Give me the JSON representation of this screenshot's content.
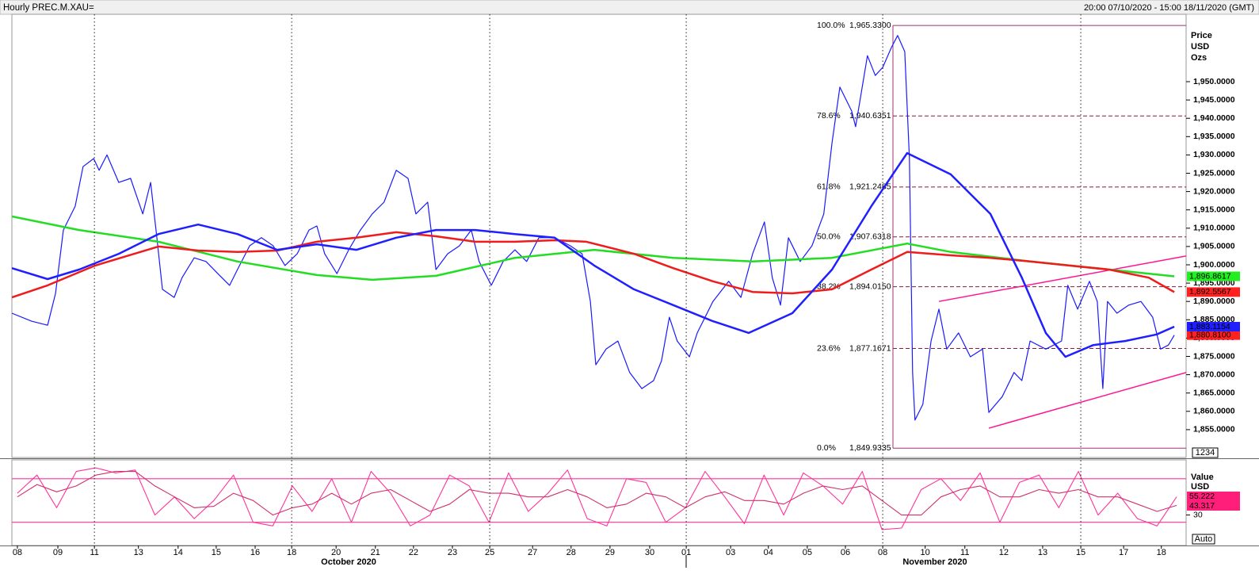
{
  "header": {
    "title": "Hourly PREC.M.XAU=",
    "range": "20:00 07/10/2020 - 15:00 18/11/2020 (GMT)"
  },
  "controls": {
    "count": "1234",
    "auto": "Auto"
  },
  "x_group_labels": [
    "October 2020",
    "November 2020"
  ],
  "chart_data": [
    {
      "type": "line",
      "y_label_lines": [
        "Price",
        "USD",
        "Ozs"
      ],
      "xlim": [
        -0.14,
        29.74
      ],
      "xticks": [
        {
          "value": 0,
          "label": "08"
        },
        {
          "value": 1.03,
          "label": "09"
        },
        {
          "value": 1.96,
          "label": "11"
        },
        {
          "value": 3.08,
          "label": "13"
        },
        {
          "value": 4.09,
          "label": "14"
        },
        {
          "value": 5.06,
          "label": "15"
        },
        {
          "value": 6.05,
          "label": "16"
        },
        {
          "value": 6.98,
          "label": "18"
        },
        {
          "value": 8.11,
          "label": "20"
        },
        {
          "value": 9.11,
          "label": "21"
        },
        {
          "value": 10.08,
          "label": "22"
        },
        {
          "value": 11.07,
          "label": "23"
        },
        {
          "value": 12.02,
          "label": "25"
        },
        {
          "value": 13.11,
          "label": "27"
        },
        {
          "value": 14.09,
          "label": "28"
        },
        {
          "value": 15.08,
          "label": "29"
        },
        {
          "value": 16.09,
          "label": "30"
        },
        {
          "value": 17.02,
          "label": "01"
        },
        {
          "value": 18.15,
          "label": "03"
        },
        {
          "value": 19.11,
          "label": "04"
        },
        {
          "value": 20.1,
          "label": "05"
        },
        {
          "value": 21.07,
          "label": "06"
        },
        {
          "value": 22.02,
          "label": "08"
        },
        {
          "value": 23.1,
          "label": "10"
        },
        {
          "value": 24.11,
          "label": "11"
        },
        {
          "value": 25.1,
          "label": "12"
        },
        {
          "value": 26.09,
          "label": "13"
        },
        {
          "value": 27.06,
          "label": "15"
        },
        {
          "value": 28.15,
          "label": "17"
        },
        {
          "value": 29.11,
          "label": "18"
        }
      ],
      "xgrid": [
        1.96,
        6.98,
        12.02,
        17.02,
        22.02,
        27.06
      ],
      "ylim": [
        1847.4,
        1968.4
      ],
      "yticks": [
        {
          "value": 1855,
          "label": "1,855.0000"
        },
        {
          "value": 1860,
          "label": "1,860.0000"
        },
        {
          "value": 1865,
          "label": "1,865.0000"
        },
        {
          "value": 1870,
          "label": "1,870.0000"
        },
        {
          "value": 1875,
          "label": "1,875.0000"
        },
        {
          "value": 1880,
          "label": "1,880.0000"
        },
        {
          "value": 1885,
          "label": "1,885.0000"
        },
        {
          "value": 1890,
          "label": "1,890.0000"
        },
        {
          "value": 1895,
          "label": "1,895.0000"
        },
        {
          "value": 1900,
          "label": "1,900.0000"
        },
        {
          "value": 1905,
          "label": "1,905.0000"
        },
        {
          "value": 1910,
          "label": "1,910.0000"
        },
        {
          "value": 1915,
          "label": "1,915.0000"
        },
        {
          "value": 1920,
          "label": "1,920.0000"
        },
        {
          "value": 1925,
          "label": "1,925.0000"
        },
        {
          "value": 1930,
          "label": "1,930.0000"
        },
        {
          "value": 1935,
          "label": "1,935.0000"
        },
        {
          "value": 1940,
          "label": "1,940.0000"
        },
        {
          "value": 1945,
          "label": "1,945.0000"
        },
        {
          "value": 1950,
          "label": "1,950.0000"
        }
      ],
      "series": [
        {
          "color": "#1a1aff",
          "width": 1.2,
          "tag_color": "#ff2020",
          "tag_label": "1,880.8100",
          "x": [
            -0.14,
            0.36,
            0.77,
            0.97,
            1.17,
            1.47,
            1.67,
            1.94,
            2.08,
            2.28,
            2.58,
            2.88,
            3.19,
            3.39,
            3.55,
            3.69,
            3.99,
            4.19,
            4.5,
            4.8,
            5.1,
            5.4,
            5.6,
            5.91,
            6.21,
            6.51,
            6.81,
            7.12,
            7.42,
            7.62,
            7.82,
            8.13,
            8.43,
            8.73,
            9.03,
            9.33,
            9.64,
            9.94,
            10.14,
            10.44,
            10.65,
            10.95,
            11.25,
            11.55,
            11.75,
            12.06,
            12.36,
            12.66,
            12.96,
            13.27,
            13.67,
            14.07,
            14.37,
            14.58,
            14.72,
            14.98,
            15.28,
            15.58,
            15.89,
            16.19,
            16.39,
            16.59,
            16.79,
            17.1,
            17.3,
            17.7,
            18.1,
            18.41,
            18.71,
            19.01,
            19.21,
            19.42,
            19.62,
            19.92,
            20.22,
            20.52,
            20.73,
            20.93,
            21.23,
            21.33,
            21.63,
            21.83,
            22.02,
            22.24,
            22.4,
            22.58,
            22.7,
            22.78,
            22.84,
            23.04,
            23.25,
            23.45,
            23.65,
            23.95,
            24.25,
            24.56,
            24.72,
            25.06,
            25.36,
            25.56,
            25.77,
            26.17,
            26.57,
            26.73,
            26.98,
            27.28,
            27.48,
            27.62,
            27.74,
            27.98,
            28.28,
            28.59,
            28.89,
            29.09,
            29.29,
            29.44
          ],
          "values": [
            1886.8,
            1884.6,
            1883.5,
            1892.2,
            1909.5,
            1916,
            1926.8,
            1929,
            1925.8,
            1930,
            1922.5,
            1923.6,
            1913.9,
            1922.5,
            1907.4,
            1893.3,
            1891.1,
            1896.5,
            1901.9,
            1900.9,
            1897.6,
            1894.4,
            1898.7,
            1905.2,
            1907.4,
            1905.2,
            1899.8,
            1903,
            1909.5,
            1910.6,
            1903,
            1897.6,
            1904.1,
            1909.5,
            1913.9,
            1917.1,
            1925.8,
            1923.6,
            1913.9,
            1917.1,
            1898.7,
            1903,
            1905.2,
            1909.5,
            1900.9,
            1894.4,
            1900.9,
            1904.1,
            1900.9,
            1907.4,
            1907.4,
            1905.2,
            1903,
            1890,
            1872.7,
            1877,
            1879.2,
            1870.6,
            1866.2,
            1868.4,
            1873.8,
            1885.7,
            1879.2,
            1874.9,
            1881.4,
            1890,
            1895.5,
            1891.1,
            1903,
            1911.7,
            1896.5,
            1889,
            1907.4,
            1900.9,
            1905.2,
            1913.9,
            1933.3,
            1948.5,
            1942,
            1937.7,
            1957.1,
            1951.7,
            1953.9,
            1959.3,
            1962.6,
            1958.2,
            1929,
            1870.6,
            1857.6,
            1861.9,
            1879.2,
            1887.9,
            1877,
            1881.4,
            1874.9,
            1877,
            1859.7,
            1864,
            1870.6,
            1868.4,
            1879.2,
            1877,
            1879.2,
            1894.4,
            1887.9,
            1895.5,
            1890,
            1866.2,
            1890,
            1886.8,
            1889,
            1890,
            1885.7,
            1877,
            1878.1,
            1880.81
          ]
        },
        {
          "color": "#1f1fff",
          "width": 2.5,
          "tag_color": "#1f1fff",
          "tag_label": "1,883.1154",
          "x": [
            -0.14,
            0.77,
            1.57,
            2.58,
            3.59,
            4.6,
            5.6,
            6.61,
            7.62,
            8.63,
            9.64,
            10.65,
            11.65,
            12.66,
            13.67,
            14.68,
            15.69,
            16.69,
            17.7,
            18.61,
            19.72,
            20.73,
            21.73,
            22.64,
            23.75,
            24.76,
            25.56,
            26.17,
            26.67,
            27.38,
            28.19,
            28.99,
            29.44
          ],
          "values": [
            1899.1,
            1896.1,
            1898.7,
            1903,
            1908.4,
            1911,
            1908.4,
            1904.1,
            1905.6,
            1904.1,
            1907.4,
            1909.5,
            1909.5,
            1908.4,
            1907.4,
            1899.8,
            1893.3,
            1889,
            1884.6,
            1881.4,
            1886.8,
            1898.7,
            1916,
            1930.5,
            1924.7,
            1913.9,
            1896.5,
            1881.4,
            1874.9,
            1878.1,
            1879.2,
            1881,
            1883.1154
          ]
        },
        {
          "color": "#ee1c1c",
          "width": 2.5,
          "tag_color": "#ff2020",
          "tag_label": "1,892.5567",
          "x": [
            -0.14,
            0.77,
            1.98,
            3.59,
            4.6,
            5.6,
            6.61,
            7.62,
            8.63,
            9.64,
            10.65,
            11.65,
            12.66,
            13.67,
            14.48,
            15.69,
            16.69,
            17.7,
            18.71,
            19.72,
            20.73,
            21.73,
            22.64,
            23.75,
            24.76,
            25.77,
            26.77,
            27.78,
            28.79,
            29.44
          ],
          "values": [
            1891.1,
            1894.4,
            1899.8,
            1905,
            1903.9,
            1903.5,
            1903.9,
            1906.3,
            1907.4,
            1908.9,
            1907.8,
            1906.3,
            1906.3,
            1906.7,
            1906.3,
            1903,
            1899.1,
            1895.5,
            1892.6,
            1892.2,
            1893.3,
            1898.7,
            1903.5,
            1902.6,
            1901.9,
            1900.9,
            1899.8,
            1898.7,
            1896.5,
            1892.5567
          ]
        },
        {
          "color": "#22dd22",
          "width": 2.5,
          "tag_color": "#22ee22",
          "tag_label": "1,896.8617",
          "x": [
            -0.14,
            1.57,
            3.59,
            5.6,
            7.62,
            9.03,
            10.65,
            12.66,
            14.68,
            16.69,
            18.71,
            20.73,
            22.64,
            23.75,
            25.77,
            27.78,
            29.44
          ],
          "values": [
            1913.2,
            1909.5,
            1906.3,
            1900.9,
            1897.2,
            1895.9,
            1897,
            1901.9,
            1904.1,
            1901.9,
            1900.9,
            1901.9,
            1905.8,
            1903.5,
            1900.9,
            1898.7,
            1896.8617
          ]
        }
      ],
      "fib": {
        "x_start": 22.28,
        "levels": [
          {
            "pct": "100.0%",
            "value": 1965.33,
            "label": "1,965.3300"
          },
          {
            "pct": "78.6%",
            "value": 1940.6351,
            "label": "1,940.6351"
          },
          {
            "pct": "61.8%",
            "value": 1921.2485,
            "label": "1,921.2485"
          },
          {
            "pct": "50.0%",
            "value": 1907.6318,
            "label": "1,907.6318"
          },
          {
            "pct": "38.2%",
            "value": 1894.015,
            "label": "1,894.0150"
          },
          {
            "pct": "23.6%",
            "value": 1877.1671,
            "label": "1,877.1671"
          },
          {
            "pct": "0.0%",
            "value": 1849.9335,
            "label": "1,849.9335"
          }
        ]
      },
      "trendlines": [
        {
          "x": [
            23.45,
            29.74
          ],
          "y": [
            1890,
            1902.4
          ]
        },
        {
          "x": [
            24.72,
            29.74
          ],
          "y": [
            1855.4,
            1870.6
          ]
        }
      ]
    },
    {
      "type": "line",
      "y_label_lines": [
        "Value",
        "USD"
      ],
      "xlim": [
        -0.14,
        29.74
      ],
      "ylim": [
        -12,
        106
      ],
      "yticks": [
        30
      ],
      "levels": [
        20,
        80
      ],
      "x": [
        0,
        0.5,
        1,
        1.5,
        2,
        2.5,
        3,
        3.5,
        4,
        4.5,
        5,
        5.5,
        6,
        6.5,
        7,
        7.5,
        8,
        8.5,
        9,
        9.5,
        10,
        10.5,
        11,
        11.5,
        12,
        12.5,
        13,
        13.5,
        14,
        14.5,
        15,
        15.5,
        16,
        16.5,
        17,
        17.5,
        18,
        18.5,
        19,
        19.5,
        20,
        20.5,
        21,
        21.5,
        22,
        22.5,
        23,
        23.5,
        24,
        24.5,
        25,
        25.5,
        26,
        26.5,
        27,
        27.5,
        28,
        28.5,
        29,
        29.5
      ],
      "series": [
        {
          "color": "#ff3399",
          "tag_color": "#ff1f7a",
          "values": [
            60,
            85,
            40,
            90,
            95,
            88,
            92,
            30,
            55,
            25,
            50,
            85,
            20,
            15,
            70,
            35,
            80,
            20,
            90,
            60,
            15,
            30,
            85,
            70,
            20,
            88,
            35,
            60,
            92,
            25,
            15,
            80,
            75,
            20,
            40,
            90,
            55,
            18,
            85,
            30,
            88,
            70,
            45,
            90,
            10,
            12,
            65,
            80,
            50,
            88,
            20,
            75,
            85,
            40,
            90,
            30,
            60,
            25,
            15,
            55.222
          ]
        },
        {
          "color": "#d0306e",
          "values": [
            55,
            72,
            62,
            70,
            85,
            90,
            90,
            70,
            55,
            40,
            42,
            60,
            50,
            30,
            40,
            45,
            60,
            45,
            60,
            65,
            50,
            35,
            45,
            65,
            60,
            60,
            55,
            55,
            65,
            55,
            40,
            45,
            60,
            55,
            40,
            55,
            62,
            50,
            50,
            45,
            60,
            70,
            65,
            70,
            50,
            30,
            30,
            55,
            65,
            70,
            55,
            55,
            65,
            60,
            65,
            55,
            55,
            45,
            35,
            43.317
          ]
        }
      ]
    }
  ]
}
